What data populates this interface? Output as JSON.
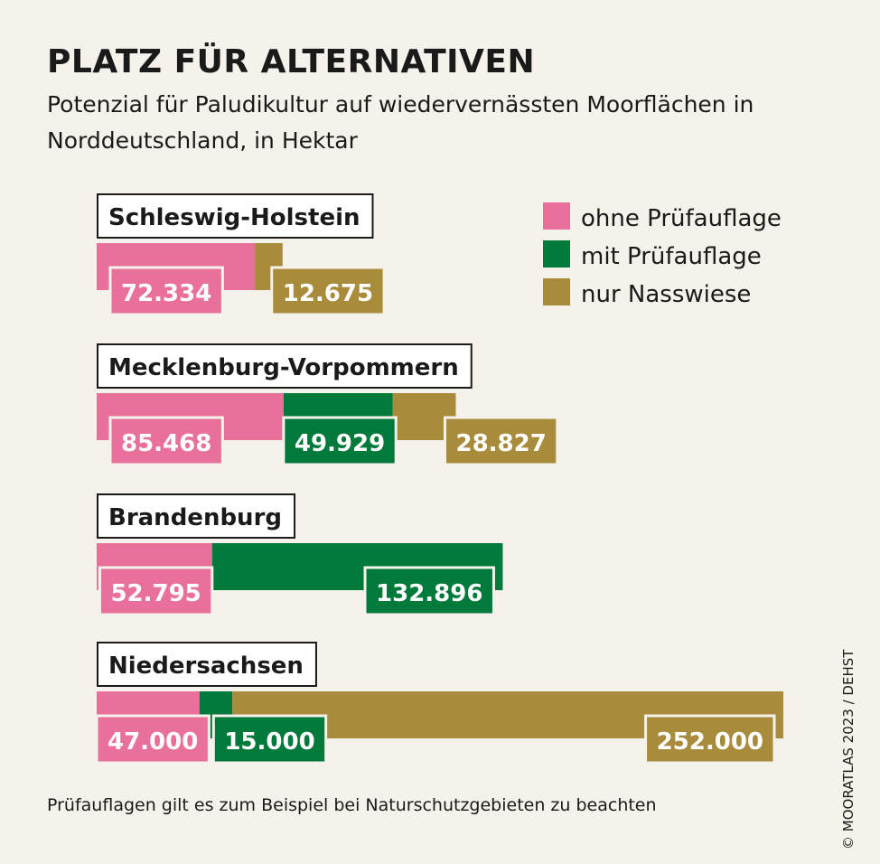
{
  "header": {
    "title": "PLATZ FÜR ALTERNATIVEN",
    "subtitle": "Potenzial für Paludikultur auf wiedervernässten Moorflächen in Norddeutschland, in Hektar"
  },
  "footnote": "Prüfauflagen gilt es zum Beispiel bei Naturschutzgebieten zu beachten",
  "credit": "© MOORATLAS 2023 / DEHST",
  "colors": {
    "ohne": "#e8709a",
    "mit": "#007a3a",
    "nass": "#a88c3c",
    "background": "#f5f2ec"
  },
  "chart_data": {
    "type": "bar",
    "orientation": "horizontal",
    "stacked": true,
    "title": "PLATZ FÜR ALTERNATIVEN",
    "subtitle": "Potenzial für Paludikultur auf wiedervernässten Moorflächen in Norddeutschland, in Hektar",
    "unit": "Hektar",
    "xlim": [
      0,
      314000
    ],
    "legend_position": "top-right",
    "categories": [
      "Schleswig-Holstein",
      "Mecklenburg-Vorpommern",
      "Brandenburg",
      "Niedersachsen"
    ],
    "series": [
      {
        "key": "ohne",
        "name": "ohne Prüfauflage",
        "values": [
          72334,
          85468,
          52795,
          47000
        ],
        "labels": [
          "72.334",
          "85.468",
          "52.795",
          "47.000"
        ]
      },
      {
        "key": "mit",
        "name": "mit Prüfauflage",
        "values": [
          0,
          49929,
          132896,
          15000
        ],
        "labels": [
          "",
          "49.929",
          "132.896",
          "15.000"
        ]
      },
      {
        "key": "nass",
        "name": "nur Nasswiese",
        "values": [
          12675,
          28827,
          0,
          252000
        ],
        "labels": [
          "12.675",
          "28.827",
          "",
          "252.000"
        ]
      }
    ]
  }
}
